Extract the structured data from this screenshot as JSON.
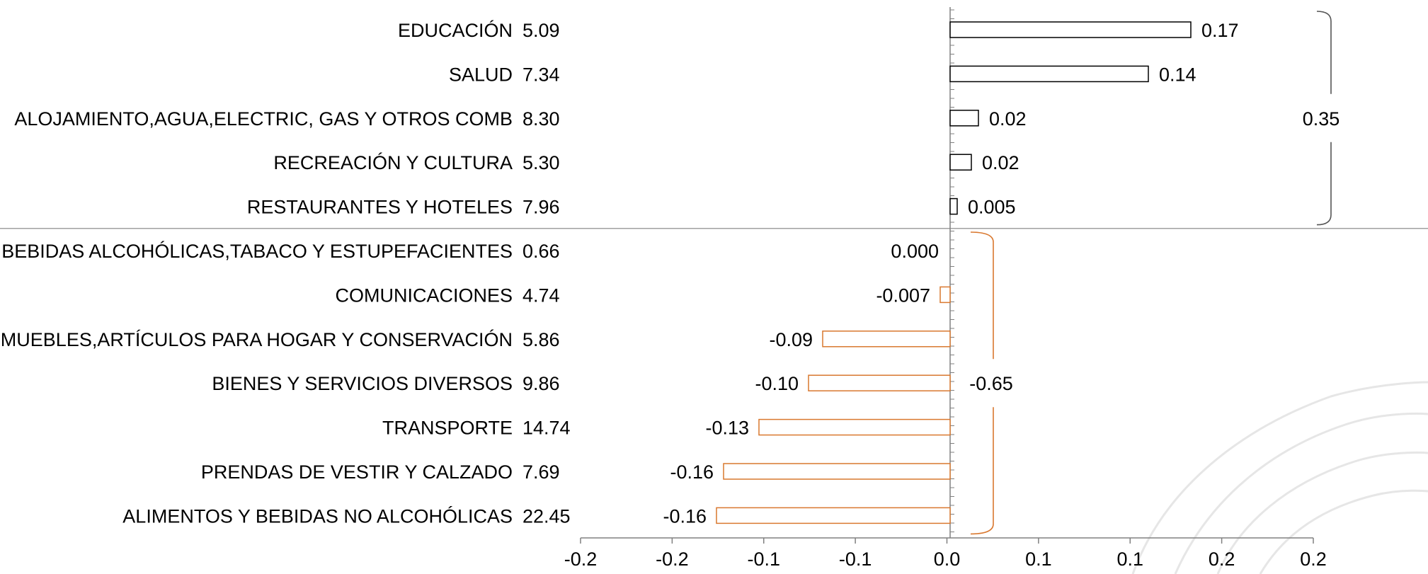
{
  "chart_data": {
    "type": "bar",
    "orientation": "horizontal",
    "title": "",
    "xlabel": "",
    "ylabel": "",
    "xlim": [
      -0.2,
      0.2
    ],
    "grid": false,
    "legend": "none",
    "x_tick_labels": [
      "-0.2",
      "-0.2",
      "-0.1",
      "-0.1",
      "0.0",
      "0.1",
      "0.1",
      "0.2",
      "0.2"
    ],
    "categories": [
      {
        "name": "EDUCACIÓN",
        "weight": "5.09",
        "value": 0.17,
        "label": "0.17"
      },
      {
        "name": "SALUD",
        "weight": "7.34",
        "value": 0.14,
        "label": "0.14"
      },
      {
        "name": "ALOJAMIENTO,AGUA,ELECTRIC, GAS Y OTROS COMB",
        "weight": "8.30",
        "value": 0.02,
        "label": "0.02"
      },
      {
        "name": "RECREACIÓN Y CULTURA",
        "weight": "5.30",
        "value": 0.015,
        "label": "0.02"
      },
      {
        "name": "RESTAURANTES Y HOTELES",
        "weight": "7.96",
        "value": 0.005,
        "label": "0.005"
      },
      {
        "name": "BEBIDAS ALCOHÓLICAS,TABACO Y ESTUPEFACIENTES",
        "weight": "0.66",
        "value": 0.0,
        "label": "0.000"
      },
      {
        "name": "COMUNICACIONES",
        "weight": "4.74",
        "value": -0.007,
        "label": "-0.007"
      },
      {
        "name": "MUEBLES,ARTÍCULOS PARA HOGAR Y CONSERVACIÓN",
        "weight": "5.86",
        "value": -0.09,
        "label": "-0.09"
      },
      {
        "name": "BIENES Y SERVICIOS DIVERSOS",
        "weight": "9.86",
        "value": -0.1,
        "label": "-0.10"
      },
      {
        "name": "TRANSPORTE",
        "weight": "14.74",
        "value": -0.135,
        "label": "-0.13"
      },
      {
        "name": "PRENDAS DE VESTIR Y CALZADO",
        "weight": "7.69",
        "value": -0.16,
        "label": "-0.16"
      },
      {
        "name": "ALIMENTOS Y BEBIDAS NO ALCOHÓLICAS",
        "weight": "22.45",
        "value": -0.165,
        "label": "-0.16"
      }
    ],
    "groups": [
      {
        "from": 0,
        "to": 4,
        "total_label": "0.35"
      },
      {
        "from": 5,
        "to": 11,
        "total_label": "-0.65"
      }
    ],
    "colors": {
      "positive_bar": "#000000",
      "negative_bar": "#d9782f",
      "brace": "#555555",
      "axis": "#808080"
    }
  }
}
